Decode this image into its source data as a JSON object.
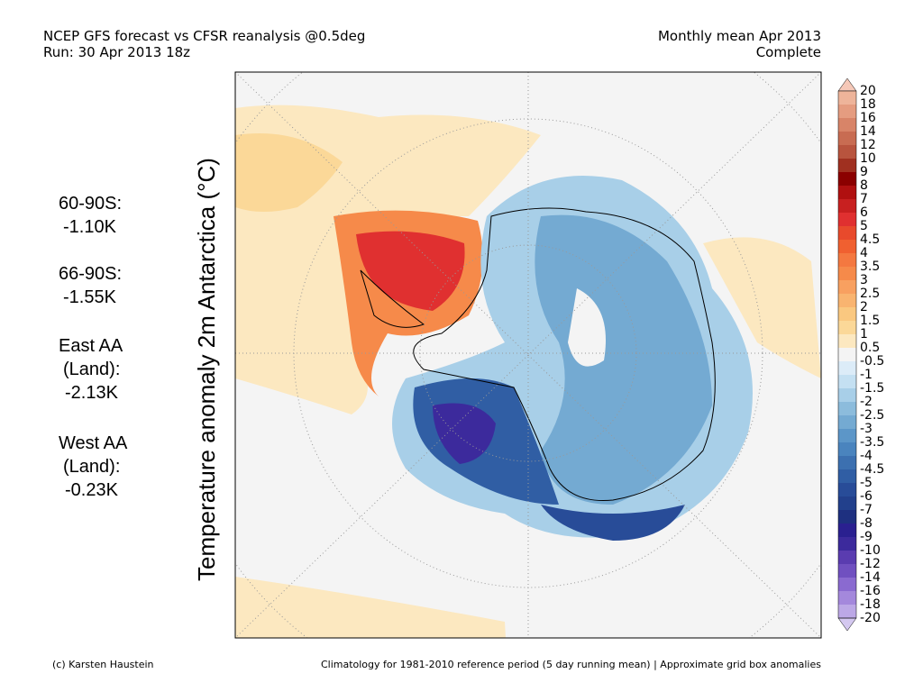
{
  "header": {
    "left": [
      "NCEP GFS forecast vs CFSR reanalysis @0.5deg",
      "Run: 30 Apr 2013 18z"
    ],
    "right": [
      "Monthly mean Apr 2013",
      "Complete"
    ]
  },
  "stats": [
    [
      "60-90S:",
      "-1.10K"
    ],
    [
      "66-90S:",
      "-1.55K"
    ],
    [
      "East AA",
      "(Land):",
      "-2.13K"
    ],
    [
      "West AA",
      "(Land):",
      "-0.23K"
    ]
  ],
  "axis_label": "Temperature anomaly 2m Antarctica (°C)",
  "colorbar": {
    "labels": [
      20,
      18,
      16,
      14,
      12,
      10,
      9,
      8,
      7,
      6,
      5,
      4.5,
      4,
      3.5,
      3,
      2.5,
      2,
      1.5,
      1,
      0.5,
      -0.5,
      -1,
      -1.5,
      -2,
      -2.5,
      -3,
      -3.5,
      -4,
      -4.5,
      -5,
      -6,
      -7,
      -8,
      -9,
      -10,
      -12,
      -14,
      -16,
      -18,
      -20
    ],
    "colors": [
      "#f5c8b8",
      "#eeb49a",
      "#e59c80",
      "#d88468",
      "#c86c52",
      "#b8543e",
      "#a03020",
      "#8b0000",
      "#b01010",
      "#c82020",
      "#e03030",
      "#e84a2c",
      "#f06030",
      "#f47840",
      "#f68a4a",
      "#f8a060",
      "#f9b470",
      "#fac880",
      "#fbd898",
      "#fce8c0",
      "#f4f4f4",
      "#dcecf8",
      "#c4e0f2",
      "#a8cfe8",
      "#8cbcdc",
      "#74aad2",
      "#5c96c8",
      "#4a84be",
      "#3c70b0",
      "#305ea4",
      "#284c98",
      "#22408c",
      "#1e3080",
      "#2a2090",
      "#3c2a9c",
      "#5a3cb0",
      "#7050c0",
      "#8a6ad0",
      "#a488dc",
      "#bca8e6",
      "#d4c8f0"
    ]
  },
  "footer": {
    "left": "(c) Karsten Haustein",
    "right": "Climatology for 1981-2010 reference period (5 day running mean) | Approximate grid box anomalies"
  }
}
